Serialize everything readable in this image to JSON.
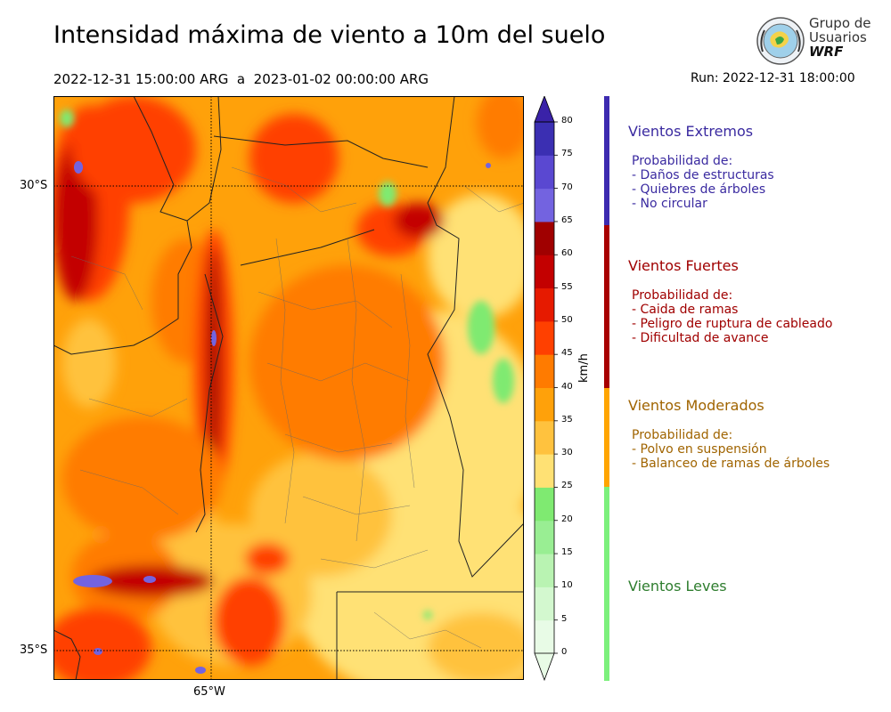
{
  "header": {
    "title": "Intensidad máxima de viento a 10m del suelo",
    "period": "2022-12-31 15:00:00 ARG  a  2023-01-02 00:00:00 ARG",
    "run": "Run: 2022-12-31 18:00:00"
  },
  "logo": {
    "line1": "Grupo de",
    "line2": "Usuarios",
    "line3": "WRF"
  },
  "map": {
    "lat_labels": [
      "30°S",
      "35°S"
    ],
    "lon_labels": [
      "65°W"
    ]
  },
  "colorbar": {
    "unit": "km/h",
    "ticks": [
      "0",
      "5",
      "10",
      "15",
      "20",
      "25",
      "30",
      "35",
      "40",
      "45",
      "50",
      "55",
      "60",
      "65",
      "70",
      "75",
      "80"
    ],
    "colors": [
      "#e8fbe6",
      "#d3f8cf",
      "#b9f3b2",
      "#99ee93",
      "#7fea71",
      "#ffe174",
      "#ffc23e",
      "#ffa10a",
      "#ff7b00",
      "#ff4000",
      "#e61a00",
      "#c30000",
      "#a00000",
      "#7363e0",
      "#5a48d1",
      "#3b2fb2",
      "#3a22a8"
    ]
  },
  "categories": [
    {
      "title": "Vientos Extremos",
      "color": "#3a2aa0",
      "bar_color": "#3d2bb0",
      "lines": [
        "Probabilidad de:",
        "- Daños de estructuras",
        "- Quiebres de árboles",
        "- No circular"
      ]
    },
    {
      "title": "Vientos Fuertes",
      "color": "#a00000",
      "bar_color": "#a80000",
      "lines": [
        "Probabilidad de:",
        "- Caida de ramas",
        "- Peligro de ruptura de cableado",
        "- Dificultad de avance"
      ]
    },
    {
      "title": "Vientos Moderados",
      "color": "#a06400",
      "bar_color": "#ffa500",
      "lines": [
        "Probabilidad de:",
        "- Polvo en suspensión",
        "- Balanceo de ramas de árboles"
      ]
    },
    {
      "title": "Vientos Leves",
      "color": "#2e7d2e",
      "bar_color": "#7cf07c",
      "lines": []
    }
  ]
}
